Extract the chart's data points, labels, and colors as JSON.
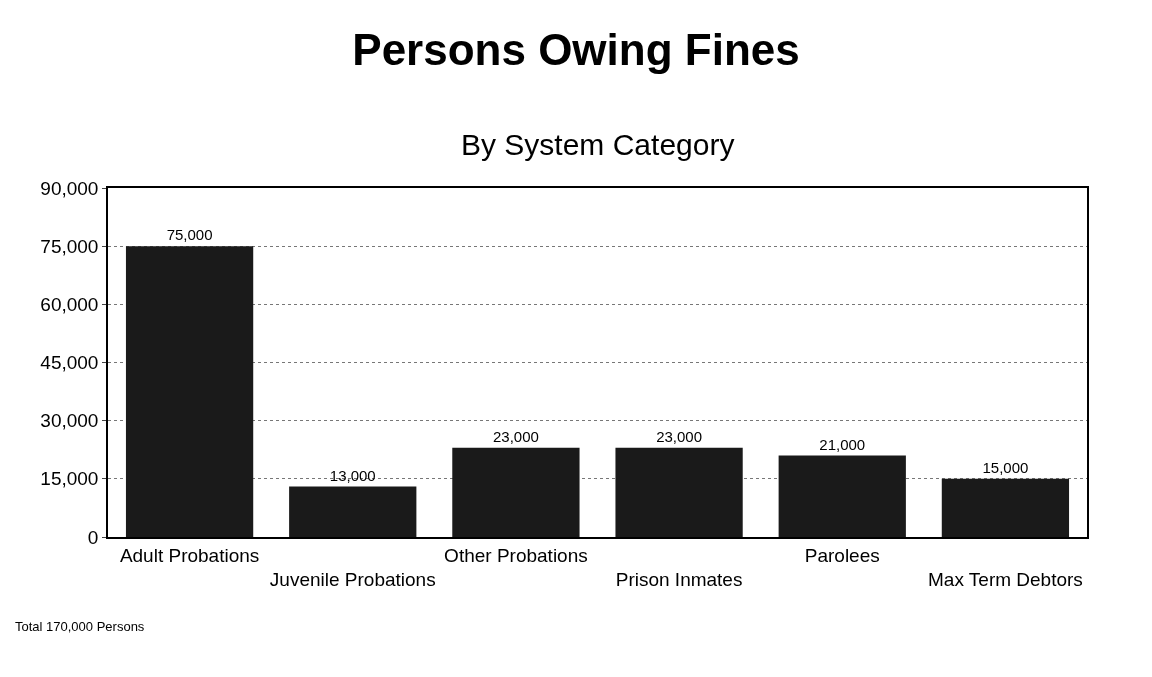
{
  "chart_data": {
    "type": "bar",
    "title": "Persons Owing Fines",
    "subtitle": "By System Category",
    "categories": [
      "Adult Probations",
      "Juvenile Probations",
      "Other Probations",
      "Prison Inmates",
      "Parolees",
      "Max Term Debtors"
    ],
    "values": [
      75000,
      13000,
      23000,
      23000,
      21000,
      15000
    ],
    "color": "#1a1a1a",
    "ylim": [
      0,
      90000
    ],
    "yticks": [
      {
        "value": 0,
        "label": "0"
      },
      {
        "value": 15000,
        "label": "15,000"
      },
      {
        "value": 30000,
        "label": "30,000"
      },
      {
        "value": 45000,
        "label": "45,000"
      },
      {
        "value": 60000,
        "label": "60,000"
      },
      {
        "value": 75000,
        "label": "75,000"
      },
      {
        "value": 90000,
        "label": "90,000"
      }
    ],
    "value_labels": [
      "75,000",
      "13,000",
      "23,000",
      "23,000",
      "21,000",
      "15,000"
    ],
    "grid": "y",
    "legend": false,
    "annotations": [
      "Total 170,000 Persons"
    ]
  }
}
